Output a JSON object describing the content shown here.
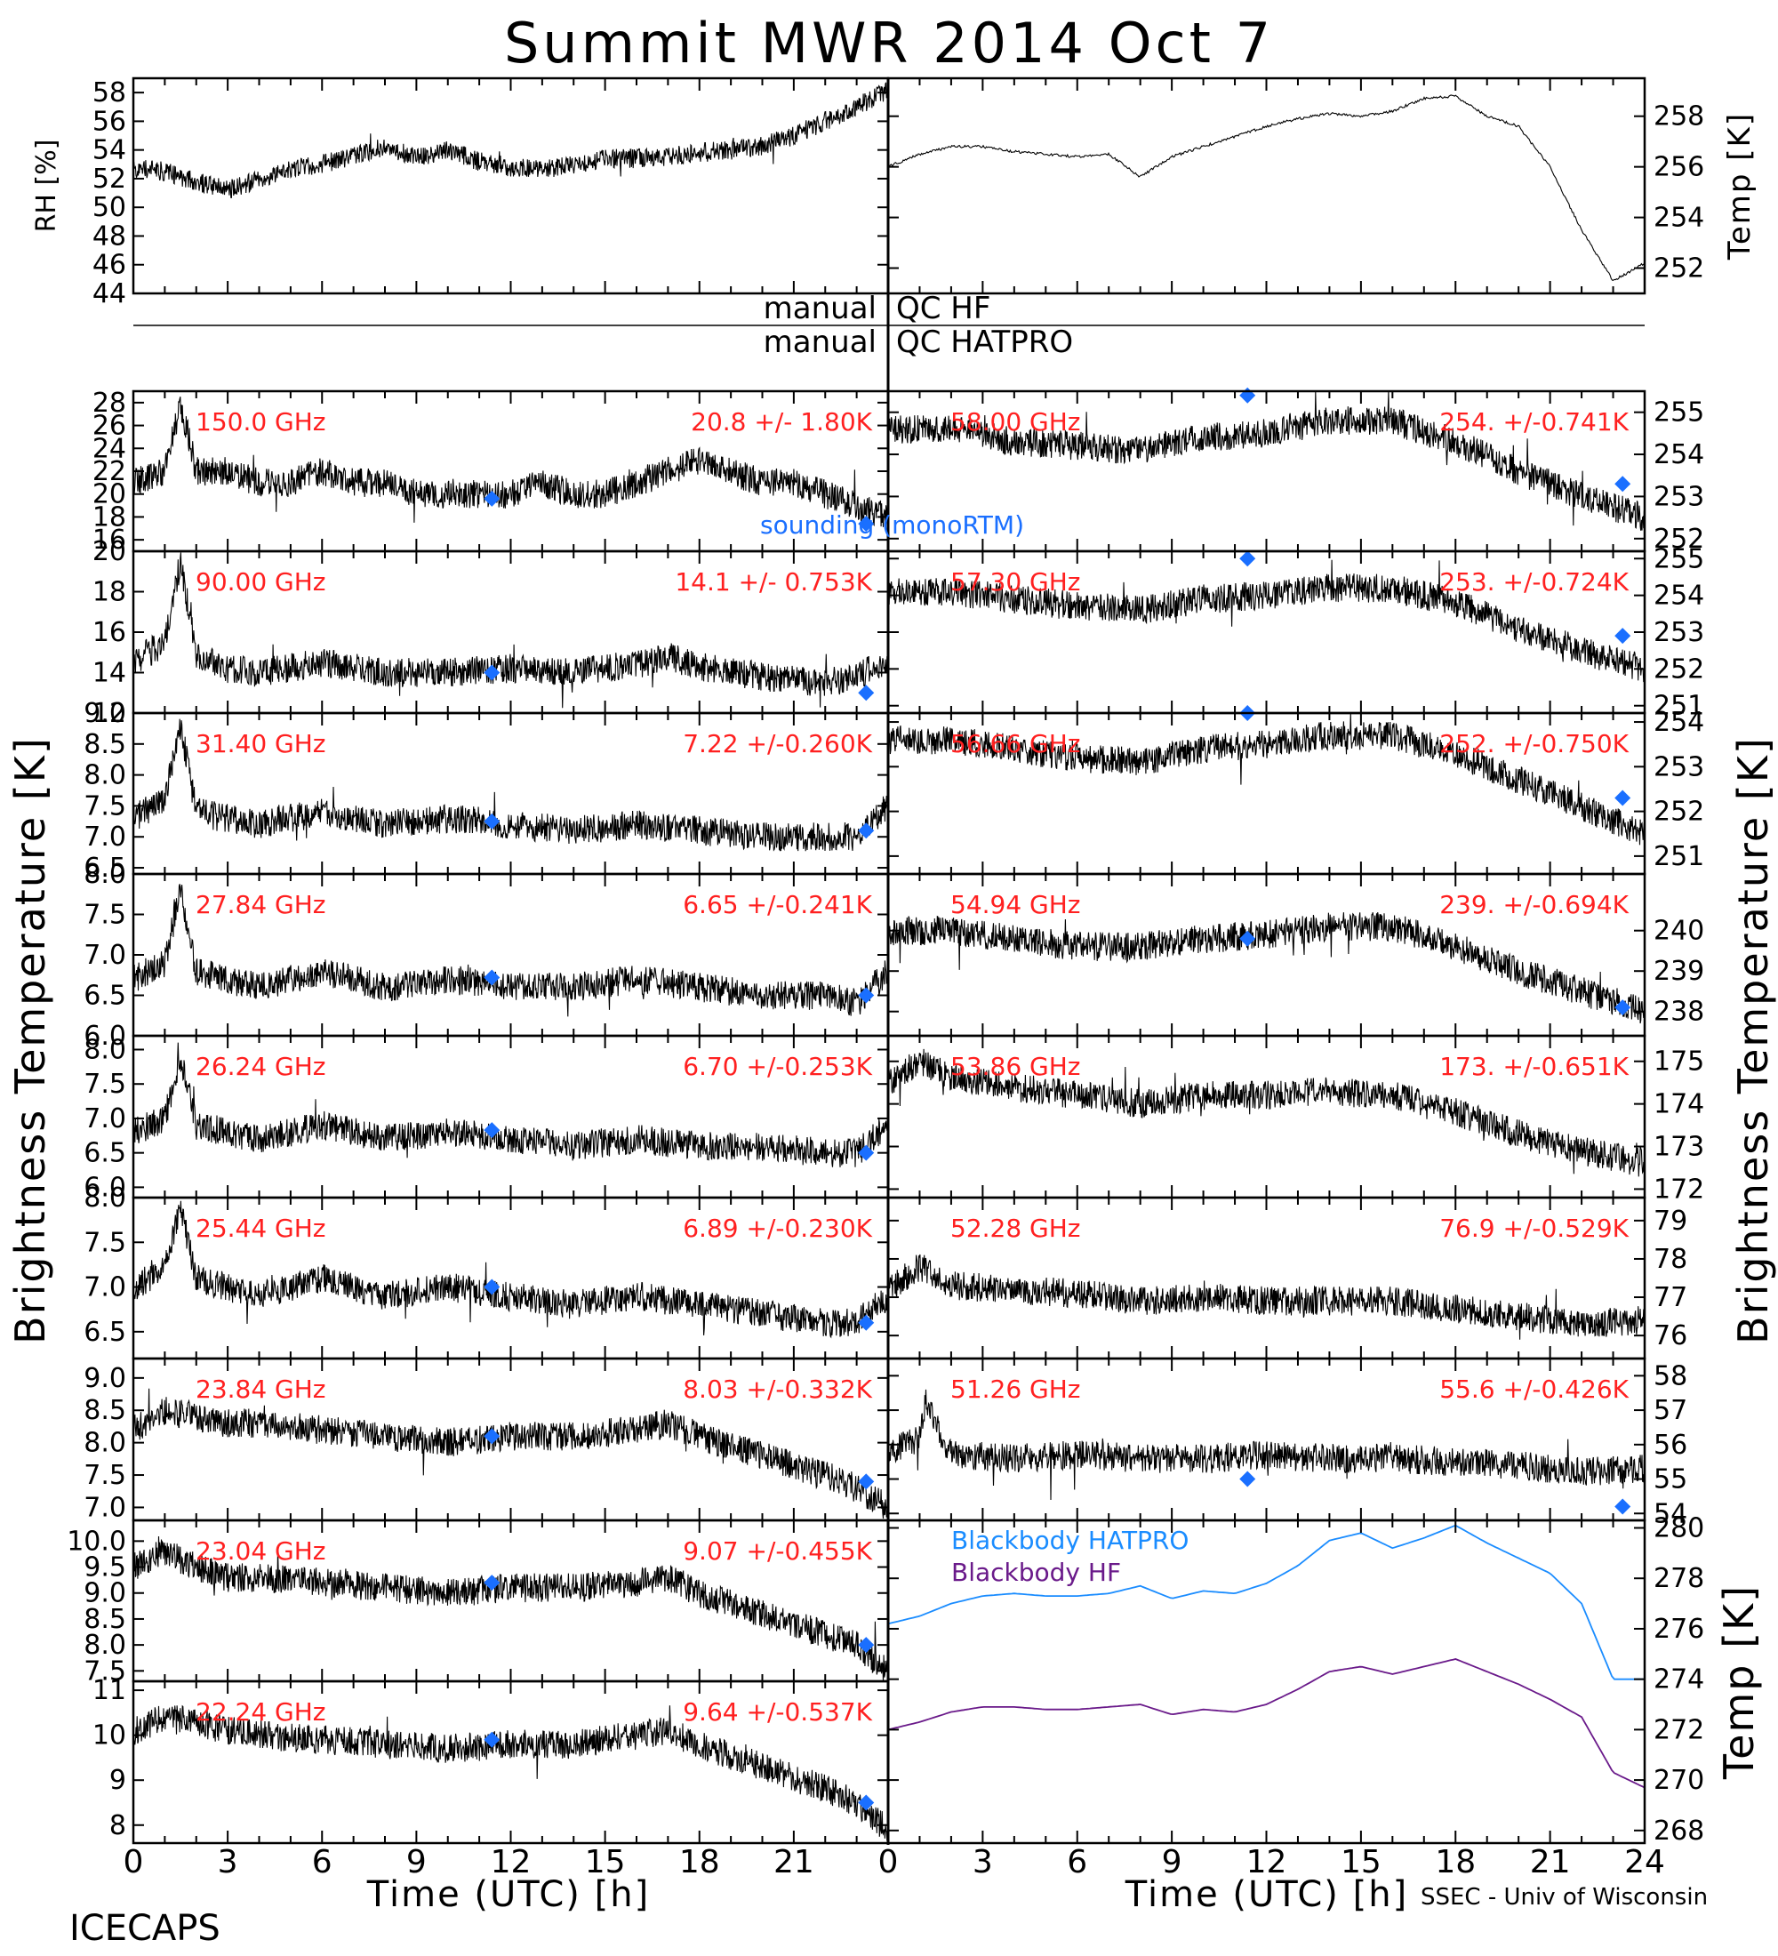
{
  "figure": {
    "title": "Summit MWR 2014 Oct  7",
    "footer_left": "ICECAPS",
    "footer_right": "SSEC - Univ of Wisconsin",
    "xlabel": "Time (UTC) [h]",
    "xticks": [
      "0",
      "3",
      "6",
      "9",
      "12",
      "15",
      "18",
      "21",
      "24"
    ],
    "left_ylabel": "Brightness Temperature [K]",
    "right_ylabel": "Brightness Temperature [K]",
    "qc_left": "manual",
    "qc_hf": "QC HF",
    "qc_hatpro": "QC HATPRO",
    "sounding_label": "sounding (monoRTM)",
    "colors": {
      "data": "#000000",
      "label": "#ff2020",
      "sounding": "#1a6fff",
      "hatpro": "#1a8cff",
      "hf": "#6a1a8a"
    }
  },
  "chart_data": [
    {
      "type": "scatter",
      "ylabel": "RH [%]",
      "ylim": [
        44,
        59
      ],
      "yticks": [
        "44",
        "46",
        "48",
        "50",
        "52",
        "54",
        "56",
        "58"
      ],
      "xlim": [
        0,
        24
      ],
      "x": [
        0,
        1,
        2,
        3,
        4,
        5,
        6,
        7,
        8,
        9,
        10,
        11,
        12,
        13,
        14,
        15,
        16,
        17,
        18,
        19,
        20,
        21,
        22,
        23,
        24
      ],
      "values": [
        52.8,
        52.5,
        51.8,
        51.2,
        52.0,
        52.6,
        53.0,
        53.6,
        54.2,
        53.5,
        54.0,
        53.2,
        52.8,
        52.6,
        53.0,
        53.4,
        53.4,
        53.5,
        53.8,
        54.0,
        54.3,
        55.0,
        56.0,
        57.0,
        58.2
      ]
    },
    {
      "type": "line",
      "ylabel": "Temp [K]",
      "ylim": [
        251,
        259.5
      ],
      "yticks": [
        "252",
        "254",
        "256",
        "258"
      ],
      "xlim": [
        0,
        24
      ],
      "x": [
        0,
        1,
        2,
        3,
        4,
        5,
        6,
        7,
        8,
        9,
        10,
        11,
        12,
        13,
        14,
        15,
        16,
        17,
        18,
        19,
        20,
        21,
        22,
        23,
        24
      ],
      "values": [
        256.0,
        256.5,
        256.8,
        256.8,
        256.6,
        256.5,
        256.4,
        256.5,
        255.6,
        256.4,
        256.8,
        257.2,
        257.6,
        257.9,
        258.1,
        258.0,
        258.2,
        258.7,
        258.8,
        258.0,
        257.6,
        256.0,
        253.5,
        251.5,
        252.2
      ]
    },
    {
      "type": "line",
      "freq": "150.0 GHz",
      "stats": "20.8 +/-  1.80K",
      "ylim": [
        15,
        29
      ],
      "yticks": [
        "16",
        "18",
        "20",
        "22",
        "24",
        "26",
        "28"
      ],
      "xlim": [
        0,
        24
      ],
      "x": [
        0,
        1,
        1.5,
        2,
        3,
        4,
        5,
        6,
        7,
        8,
        9,
        10,
        11,
        12,
        13,
        14,
        15,
        16,
        17,
        18,
        19,
        20,
        21,
        22,
        23,
        24
      ],
      "values": [
        21,
        22,
        28,
        22,
        22,
        21,
        21,
        22,
        21,
        21,
        20,
        20,
        20,
        20,
        21,
        20,
        20,
        21,
        22,
        23,
        22,
        21,
        21,
        20,
        19,
        18
      ],
      "sounding": {
        "x": [
          11.4,
          23.3
        ],
        "y": [
          19.6,
          17.4
        ]
      }
    },
    {
      "type": "line",
      "freq": "58.00 GHz",
      "stats": "254. +/-0.741K",
      "ylim": [
        251.7,
        255.5
      ],
      "yticks": [
        "252",
        "253",
        "254",
        "255"
      ],
      "xlim": [
        0,
        24
      ],
      "x": [
        0,
        2,
        4,
        6,
        8,
        10,
        12,
        14,
        16,
        18,
        20,
        22,
        24
      ],
      "values": [
        254.6,
        254.6,
        254.3,
        254.2,
        254.1,
        254.4,
        254.5,
        254.8,
        254.8,
        254.3,
        253.6,
        253.0,
        252.5
      ],
      "sounding": {
        "x": [
          11.4,
          23.3
        ],
        "y": [
          255.4,
          253.3
        ]
      }
    },
    {
      "type": "line",
      "freq": "90.00 GHz",
      "stats": "14.1 +/- 0.753K",
      "ylim": [
        12,
        20
      ],
      "yticks": [
        "12",
        "14",
        "16",
        "18",
        "20"
      ],
      "xlim": [
        0,
        24
      ],
      "x": [
        0,
        1,
        1.5,
        2,
        3,
        4,
        6,
        8,
        10,
        12,
        14,
        16,
        17,
        18,
        20,
        22,
        23,
        24
      ],
      "values": [
        14.5,
        15.5,
        19.5,
        14.8,
        14.2,
        14.0,
        14.5,
        14.0,
        14.0,
        14.2,
        14.0,
        14.4,
        14.8,
        14.3,
        13.8,
        13.5,
        13.8,
        14.6
      ],
      "sounding": {
        "x": [
          11.4,
          23.3
        ],
        "y": [
          14.0,
          13.0
        ]
      }
    },
    {
      "type": "line",
      "freq": "57.30 GHz",
      "stats": "253. +/-0.724K",
      "ylim": [
        250.8,
        255.2
      ],
      "yticks": [
        "251",
        "252",
        "253",
        "254",
        "255"
      ],
      "xlim": [
        0,
        24
      ],
      "x": [
        0,
        2,
        4,
        6,
        8,
        10,
        12,
        14,
        16,
        18,
        20,
        22,
        24
      ],
      "values": [
        254.1,
        254.1,
        253.9,
        253.7,
        253.6,
        253.9,
        254.0,
        254.2,
        254.2,
        253.8,
        253.1,
        252.5,
        252.0
      ],
      "sounding": {
        "x": [
          11.4,
          23.3
        ],
        "y": [
          255.0,
          252.9
        ]
      }
    },
    {
      "type": "line",
      "freq": "31.40 GHz",
      "stats": "7.22 +/-0.260K",
      "ylim": [
        6.4,
        9.0
      ],
      "yticks": [
        "6.5",
        "7.0",
        "7.5",
        "8.0",
        "8.5",
        "9.0"
      ],
      "xlim": [
        0,
        24
      ],
      "x": [
        0,
        1,
        1.5,
        2,
        3,
        4,
        6,
        8,
        10,
        12,
        14,
        16,
        18,
        20,
        22,
        23,
        24
      ],
      "values": [
        7.3,
        7.6,
        8.8,
        7.4,
        7.3,
        7.2,
        7.4,
        7.2,
        7.3,
        7.2,
        7.1,
        7.2,
        7.1,
        7.0,
        7.0,
        7.0,
        7.5
      ],
      "sounding": {
        "x": [
          11.4,
          23.3
        ],
        "y": [
          7.25,
          7.1
        ]
      }
    },
    {
      "type": "line",
      "freq": "56.66 GHz",
      "stats": "252. +/-0.750K",
      "ylim": [
        250.6,
        254.2
      ],
      "yticks": [
        "251",
        "252",
        "253",
        "254"
      ],
      "xlim": [
        0,
        24
      ],
      "x": [
        0,
        2,
        4,
        6,
        8,
        10,
        12,
        14,
        16,
        18,
        20,
        22,
        24
      ],
      "values": [
        253.6,
        253.6,
        253.4,
        253.2,
        253.1,
        253.4,
        253.5,
        253.7,
        253.7,
        253.3,
        252.7,
        252.1,
        251.5
      ],
      "sounding": {
        "x": [
          11.4,
          23.3
        ],
        "y": [
          254.2,
          252.3
        ]
      }
    },
    {
      "type": "line",
      "freq": "27.84 GHz",
      "stats": "6.65 +/-0.241K",
      "ylim": [
        6.0,
        8.0
      ],
      "yticks": [
        "6.0",
        "6.5",
        "7.0",
        "7.5",
        "8.0"
      ],
      "xlim": [
        0,
        24
      ],
      "x": [
        0,
        1,
        1.5,
        2,
        3,
        4,
        6,
        8,
        10,
        12,
        14,
        16,
        18,
        20,
        22,
        23,
        24
      ],
      "values": [
        6.7,
        6.9,
        7.8,
        6.8,
        6.7,
        6.6,
        6.8,
        6.6,
        6.7,
        6.6,
        6.6,
        6.7,
        6.6,
        6.5,
        6.5,
        6.4,
        6.8
      ],
      "sounding": {
        "x": [
          11.4,
          23.3
        ],
        "y": [
          6.72,
          6.5
        ]
      }
    },
    {
      "type": "line",
      "freq": "54.94 GHz",
      "stats": "239. +/-0.694K",
      "ylim": [
        237.4,
        241.4
      ],
      "yticks": [
        "238",
        "239",
        "240"
      ],
      "xlim": [
        0,
        24
      ],
      "x": [
        0,
        2,
        4,
        6,
        8,
        10,
        12,
        14,
        16,
        18,
        20,
        22,
        24
      ],
      "values": [
        240.0,
        240.0,
        239.8,
        239.6,
        239.6,
        239.8,
        239.9,
        240.1,
        240.1,
        239.6,
        239.0,
        238.5,
        238.0
      ],
      "sounding": {
        "x": [
          11.4,
          23.3
        ],
        "y": [
          239.8,
          238.1
        ]
      }
    },
    {
      "type": "line",
      "freq": "26.24 GHz",
      "stats": "6.70 +/-0.253K",
      "ylim": [
        5.85,
        8.2
      ],
      "yticks": [
        "6.0",
        "6.5",
        "7.0",
        "7.5",
        "8.0"
      ],
      "xlim": [
        0,
        24
      ],
      "x": [
        0,
        1,
        1.5,
        2,
        3,
        4,
        6,
        8,
        10,
        12,
        14,
        16,
        18,
        20,
        22,
        23,
        24
      ],
      "values": [
        6.8,
        7.0,
        7.9,
        6.9,
        6.8,
        6.7,
        6.9,
        6.7,
        6.8,
        6.7,
        6.6,
        6.7,
        6.6,
        6.6,
        6.5,
        6.5,
        6.9
      ],
      "sounding": {
        "x": [
          11.4,
          23.3
        ],
        "y": [
          6.83,
          6.5
        ]
      }
    },
    {
      "type": "line",
      "freq": "53.86 GHz",
      "stats": "173. +/-0.651K",
      "ylim": [
        171.8,
        175.6
      ],
      "yticks": [
        "172",
        "173",
        "174",
        "175"
      ],
      "xlim": [
        0,
        24
      ],
      "x": [
        0,
        1,
        2,
        4,
        6,
        8,
        10,
        12,
        14,
        16,
        18,
        20,
        22,
        24
      ],
      "values": [
        174.5,
        175.0,
        174.6,
        174.4,
        174.2,
        174.0,
        174.2,
        174.2,
        174.3,
        174.2,
        173.8,
        173.3,
        172.9,
        172.6
      ]
    },
    {
      "type": "line",
      "freq": "25.44 GHz",
      "stats": "6.89 +/-0.230K",
      "ylim": [
        6.2,
        8.0
      ],
      "yticks": [
        "6.5",
        "7.0",
        "7.5",
        "8.0"
      ],
      "xlim": [
        0,
        24
      ],
      "x": [
        0,
        1,
        1.5,
        2,
        3,
        4,
        6,
        8,
        10,
        12,
        14,
        16,
        18,
        20,
        22,
        23,
        24
      ],
      "values": [
        7.0,
        7.2,
        7.9,
        7.1,
        7.0,
        6.9,
        7.1,
        6.9,
        7.0,
        6.9,
        6.8,
        6.9,
        6.8,
        6.7,
        6.6,
        6.6,
        6.9
      ],
      "sounding": {
        "x": [
          11.4,
          23.3
        ],
        "y": [
          7.0,
          6.6
        ]
      }
    },
    {
      "type": "line",
      "freq": "52.28 GHz",
      "stats": "76.9 +/-0.529K",
      "ylim": [
        75.4,
        79.6
      ],
      "yticks": [
        "76",
        "77",
        "78",
        "79"
      ],
      "xlim": [
        0,
        24
      ],
      "x": [
        0,
        1,
        2,
        4,
        6,
        8,
        10,
        12,
        14,
        16,
        18,
        20,
        22,
        24
      ],
      "values": [
        77.2,
        77.8,
        77.3,
        77.2,
        77.1,
        76.9,
        77.0,
        76.9,
        76.9,
        76.9,
        76.7,
        76.5,
        76.3,
        76.4
      ]
    },
    {
      "type": "line",
      "freq": "23.84 GHz",
      "stats": "8.03 +/-0.332K",
      "ylim": [
        6.8,
        9.3
      ],
      "yticks": [
        "7.0",
        "7.5",
        "8.0",
        "8.5",
        "9.0"
      ],
      "xlim": [
        0,
        24
      ],
      "x": [
        0,
        1,
        2,
        3,
        4,
        6,
        8,
        10,
        12,
        14,
        16,
        17,
        18,
        20,
        22,
        23,
        24
      ],
      "values": [
        8.2,
        8.5,
        8.4,
        8.3,
        8.3,
        8.2,
        8.1,
        8.0,
        8.1,
        8.1,
        8.2,
        8.3,
        8.1,
        7.8,
        7.5,
        7.3,
        7.0
      ],
      "sounding": {
        "x": [
          11.4,
          23.3
        ],
        "y": [
          8.1,
          7.4
        ]
      }
    },
    {
      "type": "line",
      "freq": "51.26 GHz",
      "stats": "55.6 +/-0.426K",
      "ylim": [
        53.8,
        58.5
      ],
      "yticks": [
        "54",
        "55",
        "56",
        "57",
        "58"
      ],
      "xlim": [
        0,
        24
      ],
      "x": [
        0,
        1,
        1.2,
        2,
        4,
        6,
        8,
        10,
        12,
        14,
        16,
        18,
        20,
        22,
        24
      ],
      "values": [
        55.8,
        56.2,
        57.2,
        55.7,
        55.6,
        55.7,
        55.6,
        55.6,
        55.7,
        55.6,
        55.6,
        55.5,
        55.4,
        55.2,
        55.3
      ],
      "sounding": {
        "x": [
          11.4,
          23.3
        ],
        "y": [
          55.0,
          54.2
        ]
      }
    },
    {
      "type": "line",
      "freq": "23.04 GHz",
      "stats": "9.07 +/-0.455K",
      "ylim": [
        7.3,
        10.4
      ],
      "yticks": [
        "7.5",
        "8.0",
        "8.5",
        "9.0",
        "9.5",
        "10.0"
      ],
      "xlim": [
        0,
        24
      ],
      "x": [
        0,
        1,
        2,
        3,
        4,
        6,
        8,
        10,
        12,
        14,
        16,
        17,
        18,
        20,
        22,
        23,
        24
      ],
      "values": [
        9.5,
        9.8,
        9.5,
        9.3,
        9.3,
        9.2,
        9.1,
        9.0,
        9.1,
        9.1,
        9.2,
        9.3,
        9.0,
        8.6,
        8.2,
        8.0,
        7.5
      ],
      "sounding": {
        "x": [
          11.4,
          23.3
        ],
        "y": [
          9.2,
          8.0
        ]
      }
    },
    {
      "type": "line",
      "ylabel": "Temp [K]",
      "ylim": [
        267.5,
        280.3
      ],
      "yticks": [
        "268",
        "270",
        "272",
        "274",
        "276",
        "278",
        "280"
      ],
      "xlim": [
        0,
        24
      ],
      "series": [
        {
          "name": "Blackbody HATPRO",
          "x": [
            0,
            1,
            2,
            3,
            4,
            5,
            6,
            7,
            8,
            9,
            10,
            11,
            12,
            13,
            14,
            15,
            16,
            17,
            18,
            19,
            20,
            21,
            22,
            23,
            24
          ],
          "values": [
            276.2,
            276.5,
            277.0,
            277.3,
            277.4,
            277.3,
            277.3,
            277.4,
            277.7,
            277.2,
            277.5,
            277.4,
            277.8,
            278.5,
            279.5,
            279.8,
            279.2,
            279.6,
            280.1,
            279.4,
            278.8,
            278.2,
            277.0,
            274.0,
            274.0
          ]
        },
        {
          "name": "Blackbody HF",
          "x": [
            0,
            1,
            2,
            3,
            4,
            5,
            6,
            7,
            8,
            9,
            10,
            11,
            12,
            13,
            14,
            15,
            16,
            17,
            18,
            19,
            20,
            21,
            22,
            23,
            24
          ],
          "values": [
            272.0,
            272.3,
            272.7,
            272.9,
            272.9,
            272.8,
            272.8,
            272.9,
            273.0,
            272.6,
            272.8,
            272.7,
            273.0,
            273.6,
            274.3,
            274.5,
            274.2,
            274.5,
            274.8,
            274.3,
            273.8,
            273.2,
            272.5,
            270.3,
            269.7
          ]
        }
      ]
    },
    {
      "type": "line",
      "freq": "22.24 GHz",
      "stats": "9.64 +/-0.537K",
      "ylim": [
        7.6,
        11.2
      ],
      "yticks": [
        "8",
        "9",
        "10",
        "11"
      ],
      "xlim": [
        0,
        24
      ],
      "x": [
        0,
        1,
        2,
        3,
        4,
        6,
        8,
        10,
        12,
        14,
        16,
        17,
        18,
        20,
        22,
        23,
        24
      ],
      "values": [
        10.1,
        10.4,
        10.3,
        10.1,
        10.0,
        9.9,
        9.8,
        9.7,
        9.8,
        9.8,
        10.0,
        10.1,
        9.8,
        9.3,
        8.8,
        8.5,
        7.9
      ],
      "sounding": {
        "x": [
          11.4,
          23.3
        ],
        "y": [
          9.9,
          8.5
        ]
      }
    }
  ]
}
